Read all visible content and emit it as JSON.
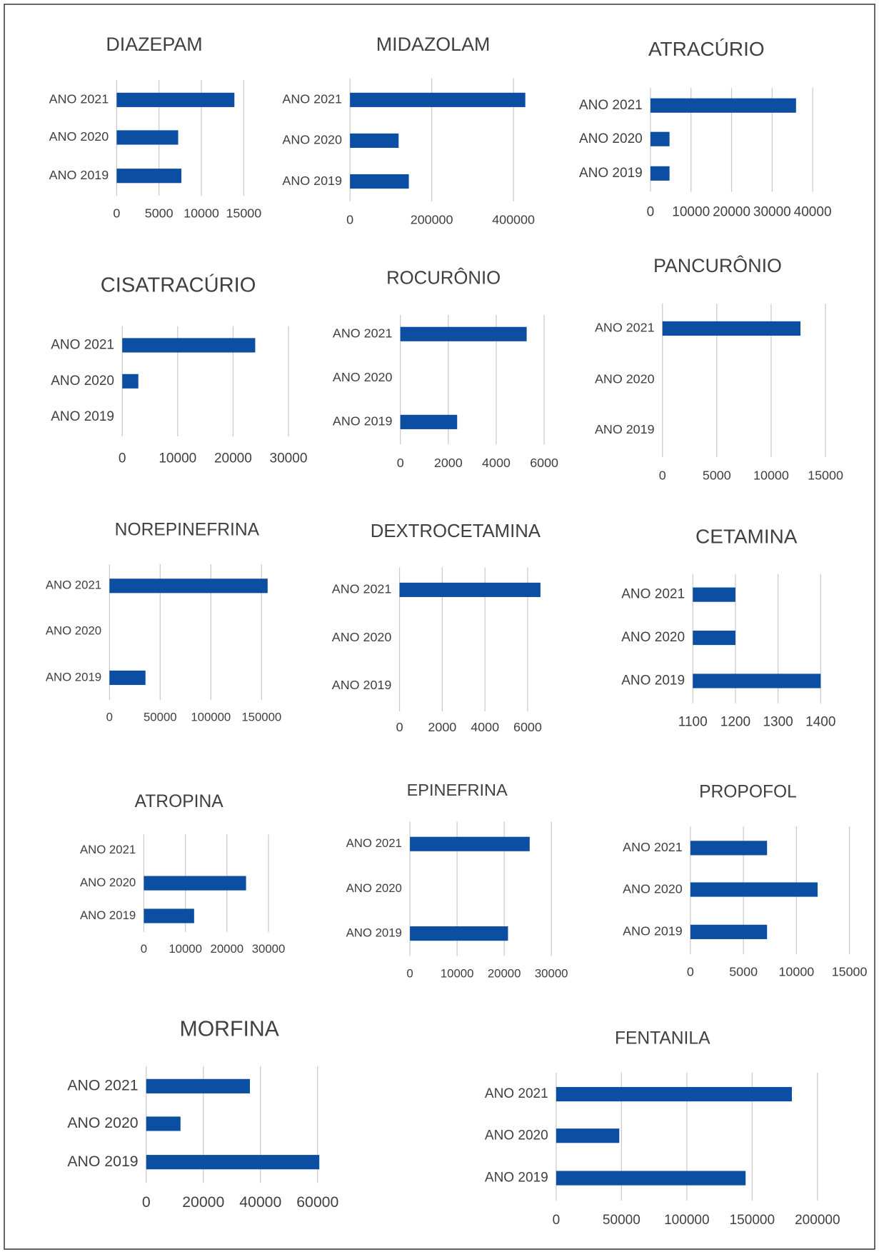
{
  "chart_data": [
    {
      "type": "bar",
      "title": "DIAZEPAM",
      "categories": [
        "ANO 2021",
        "ANO 2020",
        "ANO 2019"
      ],
      "values": [
        13900,
        7260,
        7640
      ],
      "color": "#0b4ea2",
      "xlim": [
        0,
        15000
      ],
      "xticks": [
        0,
        5000,
        10000,
        15000
      ],
      "grid": true
    },
    {
      "type": "bar",
      "title": "MIDAZOLAM",
      "categories": [
        "ANO 2021",
        "ANO 2020",
        "ANO 2019"
      ],
      "values": [
        429000,
        119000,
        144000
      ],
      "color": "#0b4ea2",
      "xlim": [
        0,
        440000
      ],
      "xticks": [
        0,
        200000,
        400000
      ],
      "grid": true
    },
    {
      "type": "bar",
      "title": "ATRACÚRIO",
      "categories": [
        "ANO 2021",
        "ANO 2020",
        "ANO 2019"
      ],
      "values": [
        35900,
        4700,
        4700
      ],
      "color": "#0b4ea2",
      "xlim": [
        0,
        40000
      ],
      "xticks": [
        0,
        10000,
        20000,
        30000,
        40000
      ],
      "grid": true
    },
    {
      "type": "bar",
      "title": "CISATRACÚRIO",
      "categories": [
        "ANO 2021",
        "ANO 2020",
        "ANO 2019"
      ],
      "values": [
        24000,
        2900,
        null
      ],
      "color": "#0b4ea2",
      "xlim": [
        0,
        30000
      ],
      "xticks": [
        0,
        10000,
        20000,
        30000
      ],
      "grid": true
    },
    {
      "type": "bar",
      "title": "ROCURÔNIO",
      "categories": [
        "ANO 2021",
        "ANO 2020",
        "ANO 2019"
      ],
      "values": [
        5270,
        null,
        2370
      ],
      "color": "#0b4ea2",
      "xlim": [
        0,
        6000
      ],
      "xticks": [
        0,
        2000,
        4000,
        6000
      ],
      "grid": true
    },
    {
      "type": "bar",
      "title": "PANCURÔNIO",
      "categories": [
        "ANO 2021",
        "ANO 2020",
        "ANO 2019"
      ],
      "values": [
        12700,
        null,
        null
      ],
      "color": "#0b4ea2",
      "xlim": [
        0,
        15000
      ],
      "xticks": [
        0,
        5000,
        10000,
        15000
      ],
      "grid": true
    },
    {
      "type": "bar",
      "title": "NOREPINEFRINA",
      "categories": [
        "ANO 2021",
        "ANO 2020",
        "ANO 2019"
      ],
      "values": [
        156000,
        null,
        35500
      ],
      "color": "#0b4ea2",
      "xlim": [
        0,
        160000
      ],
      "xticks": [
        0,
        50000,
        100000,
        150000
      ],
      "grid": true
    },
    {
      "type": "bar",
      "title": "DEXTROCETAMINA",
      "categories": [
        "ANO 2021",
        "ANO 2020",
        "ANO 2019"
      ],
      "values": [
        6600,
        null,
        null
      ],
      "color": "#0b4ea2",
      "xlim": [
        0,
        6700
      ],
      "xticks": [
        0,
        2000,
        4000,
        6000
      ],
      "grid": true
    },
    {
      "type": "bar",
      "title": "CETAMINA",
      "categories": [
        "ANO 2021",
        "ANO 2020",
        "ANO 2019"
      ],
      "values": [
        1200,
        1200,
        1400
      ],
      "color": "#0b4ea2",
      "xlim": [
        1100,
        1400
      ],
      "xticks": [
        1100,
        1200,
        1300,
        1400
      ],
      "grid": true
    },
    {
      "type": "bar",
      "title": "ATROPINA",
      "categories": [
        "ANO 2021",
        "ANO 2020",
        "ANO 2019"
      ],
      "values": [
        null,
        24600,
        12100
      ],
      "color": "#0b4ea2",
      "xlim": [
        0,
        30000
      ],
      "xticks": [
        0,
        10000,
        20000,
        30000
      ],
      "grid": true
    },
    {
      "type": "bar",
      "title": "EPINEFRINA",
      "categories": [
        "ANO 2021",
        "ANO 2020",
        "ANO 2019"
      ],
      "values": [
        25400,
        null,
        20800
      ],
      "color": "#0b4ea2",
      "xlim": [
        0,
        30000
      ],
      "xticks": [
        0,
        10000,
        20000,
        30000
      ],
      "grid": true
    },
    {
      "type": "bar",
      "title": "PROPOFOL",
      "categories": [
        "ANO 2021",
        "ANO 2020",
        "ANO 2019"
      ],
      "values": [
        7230,
        12000,
        7230
      ],
      "color": "#0b4ea2",
      "xlim": [
        0,
        15000
      ],
      "xticks": [
        0,
        5000,
        10000,
        15000
      ],
      "grid": true
    },
    {
      "type": "bar",
      "title": "MORFINA",
      "categories": [
        "ANO 2021",
        "ANO 2020",
        "ANO 2019"
      ],
      "values": [
        36300,
        12000,
        60600
      ],
      "color": "#0b4ea2",
      "xlim": [
        0,
        61000
      ],
      "xticks": [
        0,
        20000,
        40000,
        60000
      ],
      "grid": true
    },
    {
      "type": "bar",
      "title": "FENTANILA",
      "categories": [
        "ANO 2021",
        "ANO 2020",
        "ANO 2019"
      ],
      "values": [
        180400,
        48300,
        145000
      ],
      "color": "#0b4ea2",
      "xlim": [
        0,
        200000
      ],
      "xticks": [
        0,
        50000,
        100000,
        150000,
        200000
      ],
      "grid": true
    }
  ]
}
